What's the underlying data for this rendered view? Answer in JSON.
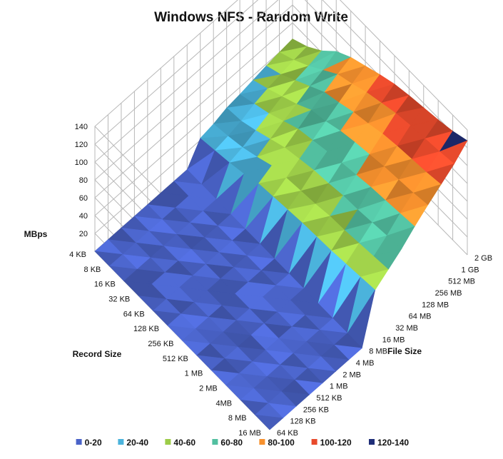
{
  "chart_data": {
    "type": "surface",
    "title": "Windows NFS - Random Write",
    "zlabel": "MBps",
    "xlabel": "Record Size",
    "ylabel": "File Size",
    "zlim": [
      0,
      140
    ],
    "z_ticks": [
      "20",
      "40",
      "60",
      "80",
      "100",
      "120",
      "140"
    ],
    "record_sizes": [
      "4 KB",
      "8 KB",
      "16 KB",
      "32 KB",
      "64 KB",
      "128 KB",
      "256 KB",
      "512 KB",
      "1 MB",
      "2 MB",
      "4MB",
      "8 MB",
      "16 MB"
    ],
    "file_sizes": [
      "64 KB",
      "128 KB",
      "256 KB",
      "512 KB",
      "1 MB",
      "2 MB",
      "4 MB",
      "8 MB",
      "16 MB",
      "32 MB",
      "64 MB",
      "128 MB",
      "256 MB",
      "512 MB",
      "1 GB",
      "2 GB"
    ],
    "legend": [
      {
        "label": "0-20",
        "color": "#4a63c8"
      },
      {
        "label": "20-40",
        "color": "#4bb3dc"
      },
      {
        "label": "40-60",
        "color": "#9ccc48"
      },
      {
        "label": "60-80",
        "color": "#52bfa0"
      },
      {
        "label": "80-100",
        "color": "#f7912e"
      },
      {
        "label": "100-120",
        "color": "#e84a2c"
      },
      {
        "label": "120-140",
        "color": "#1f2e78"
      }
    ],
    "values": [
      [
        0,
        0,
        0,
        0,
        0,
        0,
        0,
        0,
        22,
        25,
        30,
        32,
        35,
        38,
        40,
        42
      ],
      [
        0,
        0,
        0,
        0,
        0,
        0,
        0,
        0,
        25,
        28,
        32,
        38,
        42,
        45,
        48,
        50
      ],
      [
        0,
        0,
        0,
        0,
        0,
        0,
        0,
        0,
        28,
        32,
        38,
        44,
        50,
        55,
        58,
        62
      ],
      [
        0,
        0,
        0,
        0,
        0,
        0,
        0,
        0,
        32,
        38,
        45,
        52,
        58,
        65,
        70,
        78
      ],
      [
        0,
        0,
        0,
        0,
        0,
        0,
        0,
        0,
        38,
        45,
        52,
        60,
        68,
        75,
        82,
        88
      ],
      [
        0,
        0,
        0,
        0,
        0,
        0,
        0,
        0,
        40,
        48,
        56,
        64,
        72,
        80,
        88,
        95
      ],
      [
        0,
        0,
        0,
        0,
        0,
        0,
        0,
        0,
        42,
        50,
        60,
        68,
        78,
        86,
        95,
        102
      ],
      [
        0,
        0,
        0,
        0,
        0,
        0,
        0,
        0,
        44,
        52,
        62,
        72,
        82,
        90,
        100,
        108
      ],
      [
        0,
        0,
        0,
        0,
        0,
        0,
        0,
        0,
        45,
        55,
        65,
        75,
        85,
        95,
        105,
        112
      ],
      [
        0,
        0,
        0,
        0,
        0,
        0,
        0,
        0,
        46,
        56,
        66,
        78,
        88,
        98,
        108,
        115
      ],
      [
        0,
        0,
        0,
        0,
        0,
        0,
        0,
        0,
        48,
        58,
        68,
        80,
        90,
        100,
        110,
        118
      ],
      [
        0,
        0,
        0,
        0,
        0,
        0,
        0,
        0,
        50,
        60,
        70,
        82,
        92,
        102,
        112,
        122
      ],
      [
        0,
        0,
        0,
        0,
        0,
        0,
        0,
        0,
        52,
        62,
        72,
        84,
        95,
        105,
        115,
        128
      ]
    ]
  }
}
